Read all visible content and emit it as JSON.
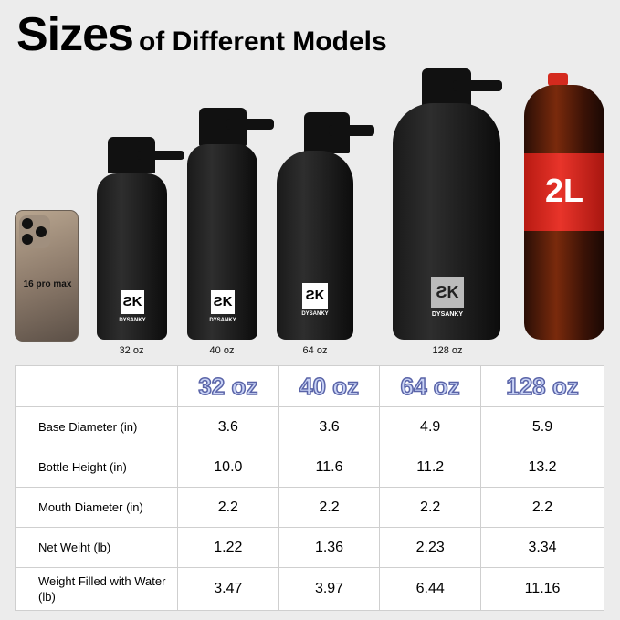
{
  "title": {
    "big": "Sizes",
    "small": "of Different Models"
  },
  "phone": {
    "label": "16 pro max"
  },
  "bottles": [
    {
      "label": "32 oz",
      "brand": "DYSANKY"
    },
    {
      "label": "40 oz",
      "brand": "DYSANKY"
    },
    {
      "label": "64 oz",
      "brand": "DYSANKY"
    },
    {
      "label": "128 oz",
      "brand": "DYSANKY"
    }
  ],
  "soda": {
    "label": "2L"
  },
  "table": {
    "headers": [
      "32 oz",
      "40 oz",
      "64 oz",
      "128 oz"
    ],
    "rows": [
      {
        "label": "Base Diameter (in)",
        "values": [
          "3.6",
          "3.6",
          "4.9",
          "5.9"
        ]
      },
      {
        "label": "Bottle Height (in)",
        "values": [
          "10.0",
          "11.6",
          "11.2",
          "13.2"
        ]
      },
      {
        "label": "Mouth Diameter (in)",
        "values": [
          "2.2",
          "2.2",
          "2.2",
          "2.2"
        ]
      },
      {
        "label": "Net Weiht (lb)",
        "values": [
          "1.22",
          "1.36",
          "2.23",
          "3.34"
        ]
      },
      {
        "label": "Weight Filled with Water (lb)",
        "values": [
          "3.47",
          "3.97",
          "6.44",
          "11.16"
        ]
      }
    ]
  }
}
